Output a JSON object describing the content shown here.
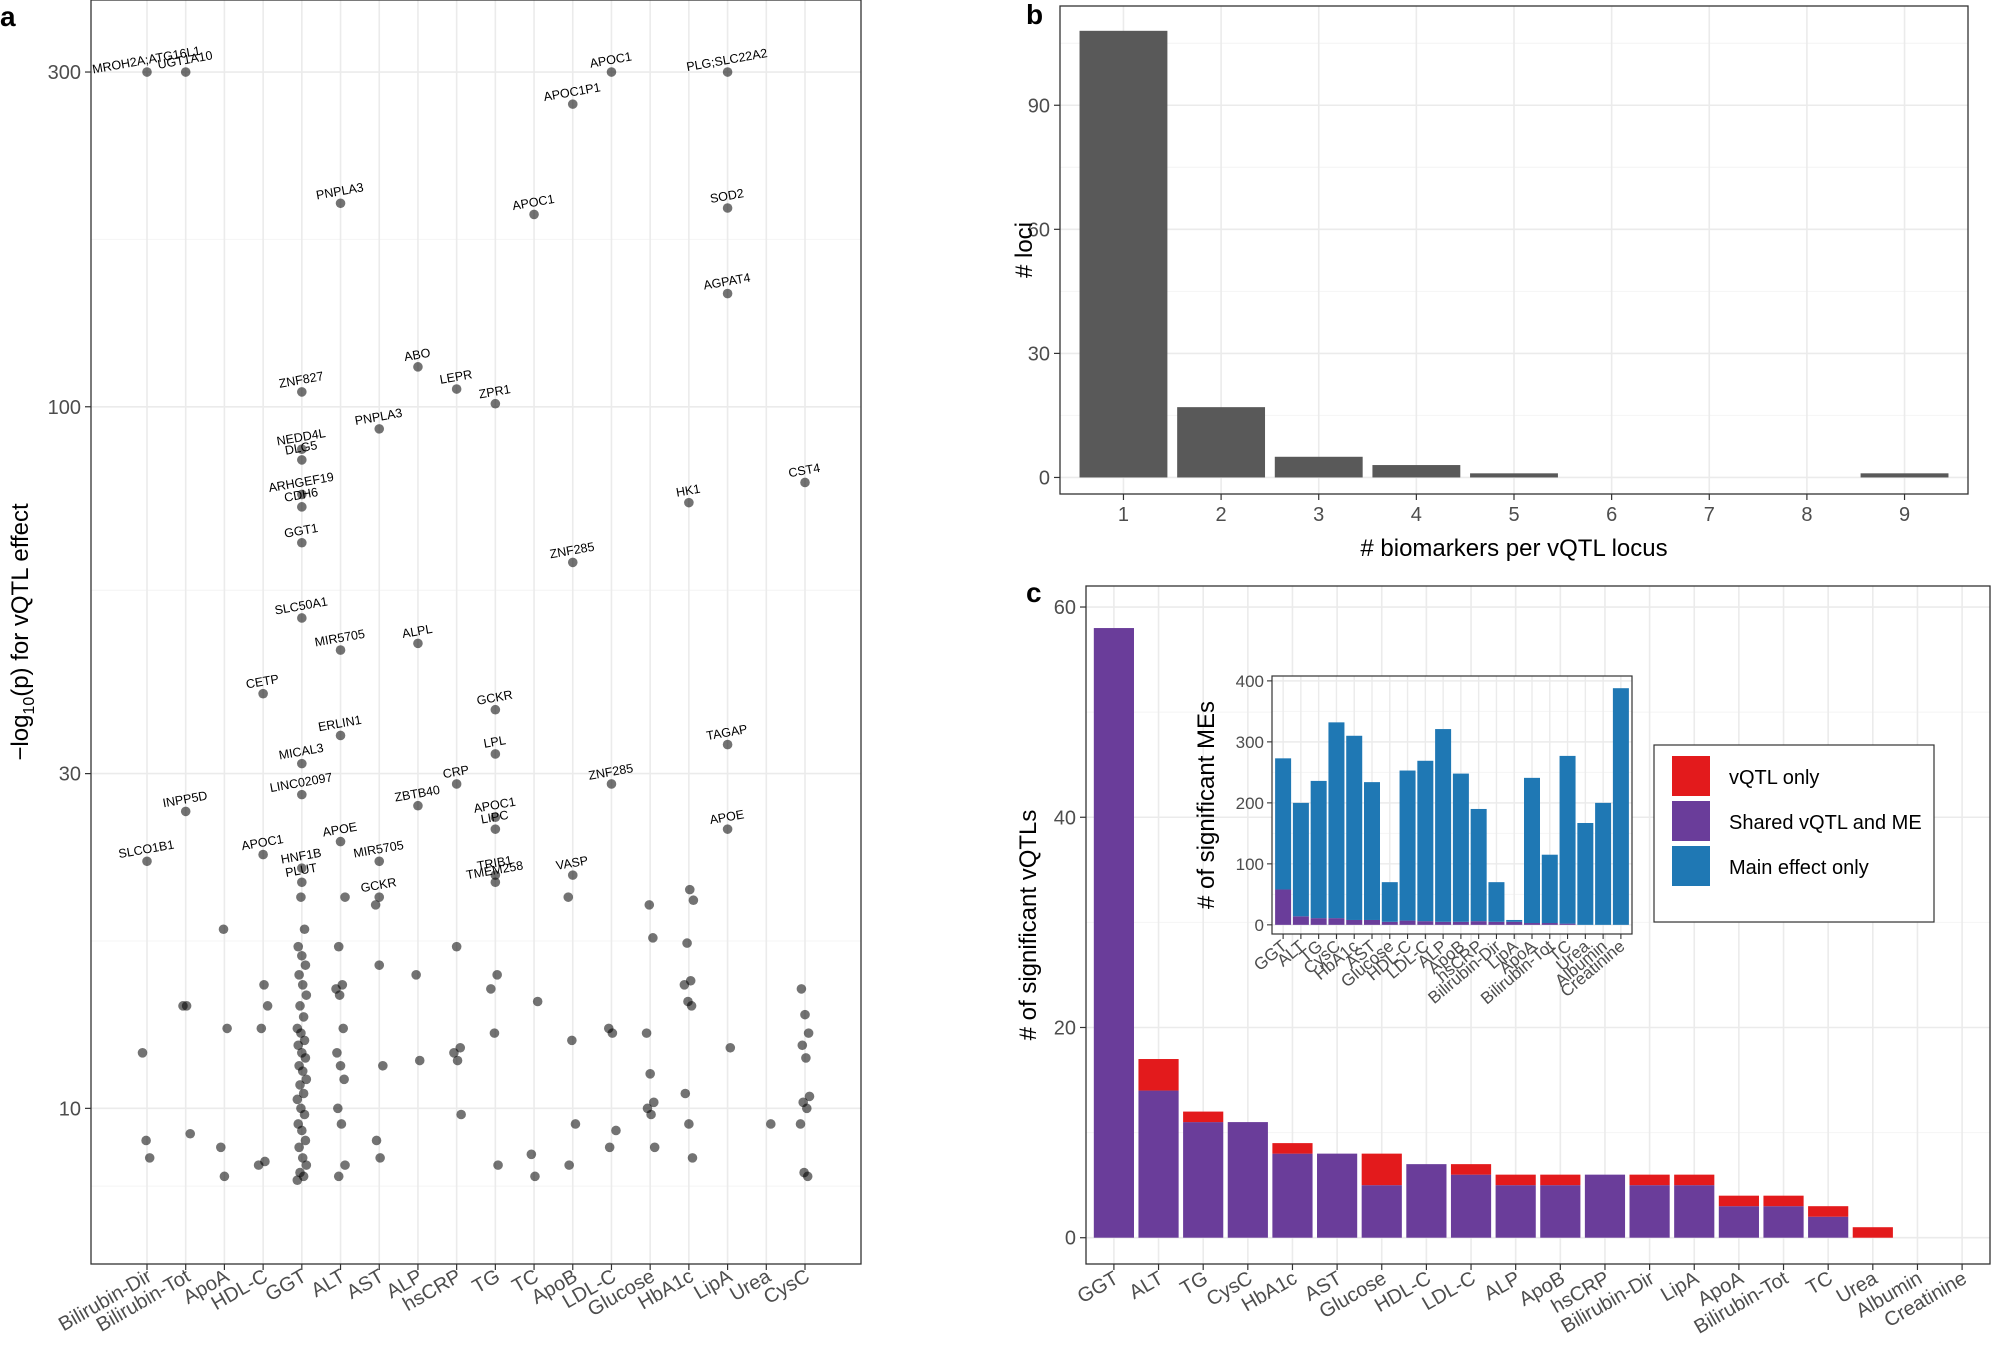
{
  "panels": {
    "a": "a",
    "b": "b",
    "c": "c"
  },
  "chart_data": [
    {
      "id": "a",
      "type": "scatter",
      "ylabel_prefix": "−log",
      "ylabel_sub": "10",
      "ylabel_suffix": "(p) for vQTL effect",
      "y_scale": "log",
      "ylim": [
        6,
        380
      ],
      "yticks": [
        {
          "value": 10,
          "label": "10"
        },
        {
          "value": 30,
          "label": "30"
        },
        {
          "value": 100,
          "label": "100"
        },
        {
          "value": 300,
          "label": "300"
        }
      ],
      "categories": [
        "Bilirubin-Dir",
        "Bilirubin-Tot",
        "ApoA",
        "HDL-C",
        "GGT",
        "ALT",
        "AST",
        "ALP",
        "hsCRP",
        "TG",
        "TC",
        "ApoB",
        "LDL-C",
        "Glucose",
        "HbA1c",
        "LipA",
        "Urea",
        "CysC"
      ],
      "labeled_points": [
        {
          "gene": "MROH2A;ATG16L1",
          "cat": "Bilirubin-Dir",
          "y": 300
        },
        {
          "gene": "UGT1A10",
          "cat": "Bilirubin-Tot",
          "y": 300
        },
        {
          "gene": "SLCO1B1",
          "cat": "Bilirubin-Dir",
          "y": 22.5
        },
        {
          "gene": "INPP5D",
          "cat": "Bilirubin-Tot",
          "y": 26.5
        },
        {
          "gene": "APOC1",
          "cat": "HDL-C",
          "y": 23
        },
        {
          "gene": "CETP",
          "cat": "HDL-C",
          "y": 39
        },
        {
          "gene": "PNPLA3",
          "cat": "ALT",
          "y": 195
        },
        {
          "gene": "ZNF827",
          "cat": "GGT",
          "y": 105
        },
        {
          "gene": "NEDD4L",
          "cat": "GGT",
          "y": 87
        },
        {
          "gene": "DLG5",
          "cat": "GGT",
          "y": 84
        },
        {
          "gene": "ARHGEF19",
          "cat": "GGT",
          "y": 75
        },
        {
          "gene": "CDH6",
          "cat": "GGT",
          "y": 72
        },
        {
          "gene": "GGT1",
          "cat": "GGT",
          "y": 64
        },
        {
          "gene": "SLC50A1",
          "cat": "GGT",
          "y": 50
        },
        {
          "gene": "MIR5705",
          "cat": "ALT",
          "y": 45
        },
        {
          "gene": "ERLIN1",
          "cat": "ALT",
          "y": 34
        },
        {
          "gene": "MICAL3",
          "cat": "GGT",
          "y": 31
        },
        {
          "gene": "LINC02097",
          "cat": "GGT",
          "y": 28
        },
        {
          "gene": "APOE",
          "cat": "ALT",
          "y": 24
        },
        {
          "gene": "HNF1B",
          "cat": "GGT",
          "y": 22
        },
        {
          "gene": "PLUT",
          "cat": "GGT",
          "y": 21
        },
        {
          "gene": "PNPLA3",
          "cat": "AST",
          "y": 93
        },
        {
          "gene": "MIR5705",
          "cat": "AST",
          "y": 22.5
        },
        {
          "gene": "GCKR",
          "cat": "AST",
          "y": 20
        },
        {
          "gene": "ABO",
          "cat": "ALP",
          "y": 114
        },
        {
          "gene": "ALPL",
          "cat": "ALP",
          "y": 46
        },
        {
          "gene": "ZBTB40",
          "cat": "ALP",
          "y": 27
        },
        {
          "gene": "LEPR",
          "cat": "hsCRP",
          "y": 106
        },
        {
          "gene": "CRP",
          "cat": "hsCRP",
          "y": 29
        },
        {
          "gene": "ZPR1",
          "cat": "TG",
          "y": 101
        },
        {
          "gene": "GCKR",
          "cat": "TG",
          "y": 37
        },
        {
          "gene": "LPL",
          "cat": "TG",
          "y": 32
        },
        {
          "gene": "APOC1",
          "cat": "TG",
          "y": 26
        },
        {
          "gene": "LIPC",
          "cat": "TG",
          "y": 25
        },
        {
          "gene": "TRIB1",
          "cat": "TG",
          "y": 21.5
        },
        {
          "gene": "TMEM258",
          "cat": "TG",
          "y": 21
        },
        {
          "gene": "APOC1",
          "cat": "TC",
          "y": 188
        },
        {
          "gene": "APOC1P1",
          "cat": "ApoB",
          "y": 270
        },
        {
          "gene": "ZNF285",
          "cat": "ApoB",
          "y": 60
        },
        {
          "gene": "VASP",
          "cat": "ApoB",
          "y": 21.5
        },
        {
          "gene": "APOC1",
          "cat": "LDL-C",
          "y": 300
        },
        {
          "gene": "ZNF285",
          "cat": "LDL-C",
          "y": 29
        },
        {
          "gene": "PLG;SLC22A2",
          "cat": "LipA",
          "y": 300
        },
        {
          "gene": "SOD2",
          "cat": "LipA",
          "y": 192
        },
        {
          "gene": "AGPAT4",
          "cat": "LipA",
          "y": 145
        },
        {
          "gene": "HK1",
          "cat": "HbA1c",
          "y": 73
        },
        {
          "gene": "TAGAP",
          "cat": "LipA",
          "y": 33
        },
        {
          "gene": "APOE",
          "cat": "LipA",
          "y": 25
        },
        {
          "gene": "CST4",
          "cat": "CysC",
          "y": 78
        }
      ],
      "unlabeled_points": [
        {
          "cat": "Bilirubin-Dir",
          "ys": [
            12,
            9,
            8.5
          ]
        },
        {
          "cat": "Bilirubin-Tot",
          "ys": [
            14,
            14,
            9.2
          ]
        },
        {
          "cat": "ApoA",
          "ys": [
            18,
            13,
            8.8,
            8
          ]
        },
        {
          "cat": "HDL-C",
          "ys": [
            15,
            14,
            13,
            8.4,
            8.3
          ]
        },
        {
          "cat": "GGT",
          "ys": [
            18,
            17,
            16.5,
            16,
            15.5,
            15,
            14.5,
            14,
            13.5,
            13,
            12.8,
            12.5,
            12.3,
            12,
            11.8,
            11.5,
            11.3,
            11,
            10.8,
            10.5,
            10.3,
            10,
            9.8,
            9.5,
            9.3,
            9,
            8.8,
            8.5,
            8.3,
            8.1,
            8,
            7.9,
            20
          ]
        },
        {
          "cat": "ALT",
          "ys": [
            20,
            17,
            15,
            14.8,
            14.5,
            13,
            12,
            11.5,
            11,
            10,
            9.5,
            8.3,
            8
          ]
        },
        {
          "cat": "AST",
          "ys": [
            19.5,
            16,
            11.5,
            9,
            8.5
          ]
        },
        {
          "cat": "ALP",
          "ys": [
            15.5,
            11.7
          ]
        },
        {
          "cat": "hsCRP",
          "ys": [
            17,
            12.2,
            12,
            11.7,
            9.8
          ]
        },
        {
          "cat": "TG",
          "ys": [
            15.5,
            14.8,
            12.8,
            8.3
          ]
        },
        {
          "cat": "TC",
          "ys": [
            14.2,
            8.6,
            8
          ]
        },
        {
          "cat": "ApoB",
          "ys": [
            20,
            12.5,
            9.5,
            8.3
          ]
        },
        {
          "cat": "LDL-C",
          "ys": [
            13,
            12.8,
            9.3,
            8.8
          ]
        },
        {
          "cat": "Glucose",
          "ys": [
            19.5,
            17.5,
            12.8,
            11.2,
            10.2,
            10,
            9.8,
            8.8
          ]
        },
        {
          "cat": "HbA1c",
          "ys": [
            20.5,
            19.8,
            17.2,
            15.2,
            15,
            14.2,
            14,
            10.5,
            9.5,
            8.5
          ]
        },
        {
          "cat": "LipA",
          "ys": [
            12.2
          ]
        },
        {
          "cat": "Urea",
          "ys": [
            9.5
          ]
        },
        {
          "cat": "CysC",
          "ys": [
            14.8,
            13.6,
            12.8,
            12.3,
            11.8,
            10.4,
            10.2,
            10,
            9.5,
            8.1,
            8
          ]
        }
      ]
    },
    {
      "id": "b",
      "type": "bar",
      "xlabel": "# biomarkers per vQTL locus",
      "ylabel": "# loci",
      "categories": [
        "1",
        "2",
        "3",
        "4",
        "5",
        "6",
        "7",
        "8",
        "9"
      ],
      "values": [
        108,
        17,
        5,
        3,
        1,
        0,
        0,
        0,
        1
      ],
      "ylim": [
        -4,
        114
      ],
      "yticks": [
        0,
        30,
        60,
        90
      ],
      "color": "#595959"
    },
    {
      "id": "c",
      "type": "bar",
      "stacked": true,
      "ylabel": "# of significant vQTLs",
      "categories": [
        "GGT",
        "ALT",
        "TG",
        "CysC",
        "HbA1c",
        "AST",
        "Glucose",
        "HDL-C",
        "LDL-C",
        "ALP",
        "ApoB",
        "hsCRP",
        "Bilirubin-Dir",
        "LipA",
        "ApoA",
        "Bilirubin-Tot",
        "TC",
        "Urea",
        "Albumin",
        "Creatinine"
      ],
      "series": [
        {
          "name": "Shared vQTL and ME",
          "color": "#6a3d9a",
          "values": [
            58,
            14,
            11,
            11,
            8,
            8,
            5,
            7,
            6,
            5,
            5,
            6,
            5,
            5,
            3,
            3,
            2,
            0,
            0,
            0
          ]
        },
        {
          "name": "vQTL only",
          "color": "#e31a1c",
          "values": [
            0,
            3,
            1,
            0,
            1,
            0,
            3,
            0,
            1,
            1,
            1,
            0,
            1,
            1,
            1,
            1,
            1,
            1,
            0,
            0
          ]
        }
      ],
      "ylim": [
        -2.5,
        62
      ],
      "yticks": [
        0,
        20,
        40,
        60
      ]
    },
    {
      "id": "c-inset",
      "type": "bar",
      "stacked": true,
      "ylabel": "# of significant MEs",
      "categories": [
        "GGT",
        "ALT",
        "TG",
        "CysC",
        "HbA1c",
        "AST",
        "Glucose",
        "HDL-C",
        "LDL-C",
        "ALP",
        "ApoB",
        "hsCRP",
        "Bilirubin-Dir",
        "LipA",
        "ApoA",
        "Bilirubin-Tot",
        "TC",
        "Urea",
        "Albumin",
        "Creatinine"
      ],
      "series": [
        {
          "name": "Shared vQTL and ME",
          "color": "#6a3d9a",
          "values": [
            58,
            14,
            11,
            11,
            8,
            8,
            5,
            7,
            6,
            5,
            5,
            6,
            5,
            5,
            3,
            3,
            2,
            0,
            0,
            0
          ]
        },
        {
          "name": "Main effect only",
          "color": "#1f78b4",
          "values": [
            215,
            186,
            225,
            321,
            302,
            226,
            65,
            246,
            263,
            316,
            243,
            184,
            65,
            3,
            238,
            112,
            275,
            167,
            200,
            388
          ]
        }
      ],
      "ylim": [
        -15,
        408
      ],
      "yticks": [
        0,
        100,
        200,
        300,
        400
      ]
    }
  ],
  "legend": [
    {
      "label": "vQTL only",
      "color": "#e31a1c"
    },
    {
      "label": "Shared vQTL and ME",
      "color": "#6a3d9a"
    },
    {
      "label": "Main effect only",
      "color": "#1f78b4"
    }
  ]
}
